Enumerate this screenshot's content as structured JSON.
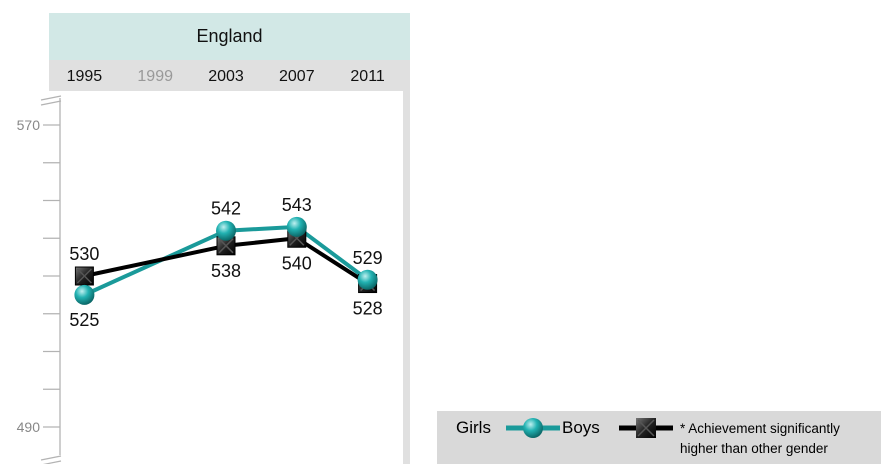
{
  "chart_data": {
    "type": "line",
    "panel_title": "England",
    "categories": [
      "1995",
      "1999",
      "2003",
      "2007",
      "2011"
    ],
    "inactive_categories": [
      "1999"
    ],
    "ylim": [
      490,
      570
    ],
    "y_tick_labels": [
      "570",
      "490"
    ],
    "axis_break": true,
    "series": [
      {
        "name": "Girls",
        "color": "#1a9a9a",
        "marker": "circle",
        "x": [
          "1995",
          "2003",
          "2007",
          "2011"
        ],
        "values": [
          525,
          542,
          543,
          529
        ]
      },
      {
        "name": "Boys",
        "color": "#000000",
        "marker": "square-x",
        "x": [
          "1995",
          "2003",
          "2007",
          "2011"
        ],
        "values": [
          530,
          538,
          540,
          528
        ]
      }
    ]
  },
  "legend": {
    "girls_label": "Girls",
    "boys_label": "Boys",
    "note_line1": "* Achievement significantly",
    "note_line2": "higher than other gender"
  }
}
